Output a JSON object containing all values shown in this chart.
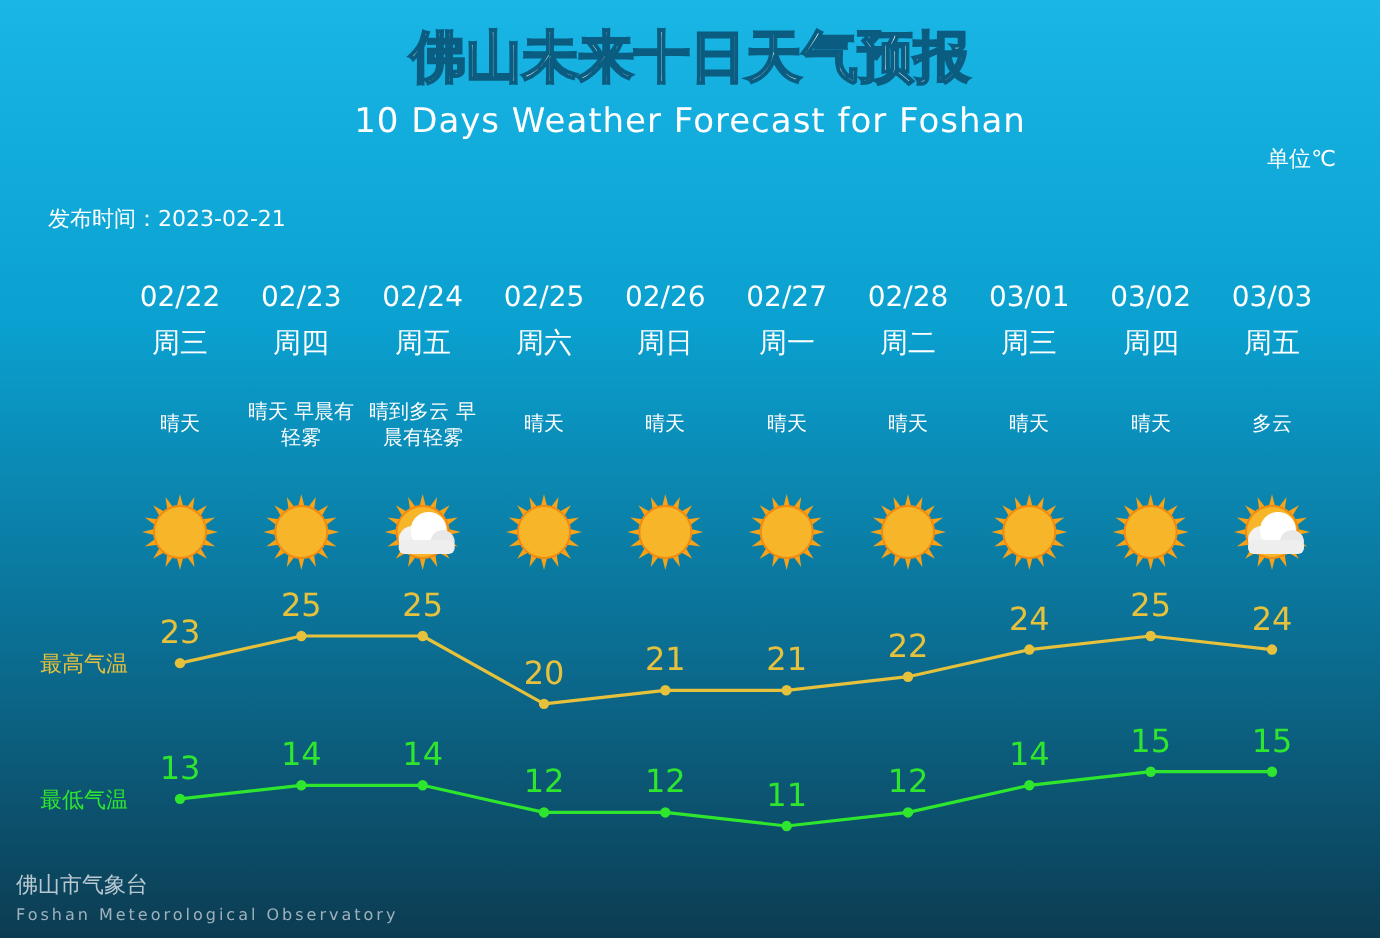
{
  "chart_data": {
    "type": "line",
    "title": "佛山未来十日天气预报",
    "subtitle": "10 Days Weather Forecast for Foshan",
    "categories": [
      "02/22\n周三",
      "02/23\n周四",
      "02/24\n周五",
      "02/25\n周六",
      "02/26\n周日",
      "02/27\n周一",
      "02/28\n周二",
      "03/01\n周三",
      "03/02\n周四",
      "03/03\n周五"
    ],
    "series": [
      {
        "name": "最高气温",
        "color": "#e6c13c",
        "values": [
          23,
          25,
          25,
          20,
          21,
          21,
          22,
          24,
          25,
          24
        ]
      },
      {
        "name": "最低气温",
        "color": "#2ee62e",
        "values": [
          13,
          14,
          14,
          12,
          12,
          11,
          12,
          14,
          15,
          15
        ]
      }
    ],
    "data_labels": true,
    "marker": "circle",
    "legend": "left",
    "annotations": [
      "单位℃",
      "发布时间：2023-02-21",
      "佛山市气象台",
      "Foshan Meteorological Observatory",
      "晴天",
      "晴天 早晨有轻雾",
      "晴到多云 早晨有轻雾",
      "晴天",
      "晴天",
      "晴天",
      "晴天",
      "晴天",
      "晴天",
      "多云"
    ]
  }
}
